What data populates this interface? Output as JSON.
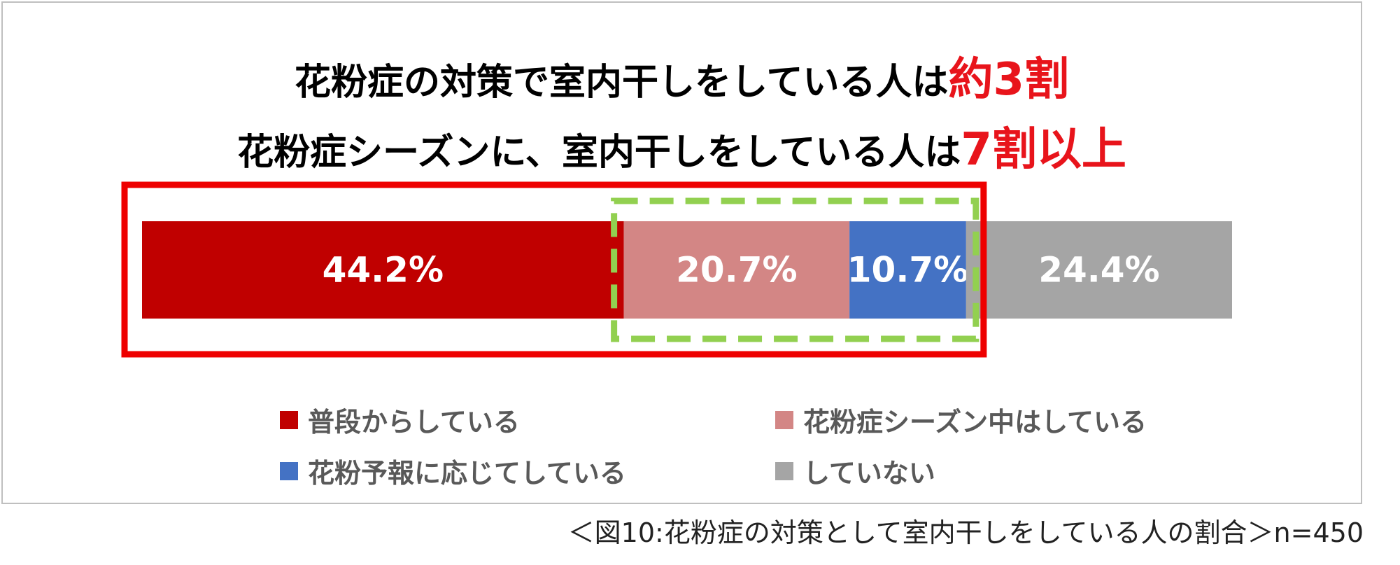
{
  "title": {
    "line1_prefix": "花粉症の対策で室内干しをしている人は",
    "line1_highlight": "約3割",
    "line2_prefix": "花粉症シーズンに、室内干しをしている人は",
    "line2_highlight": "7割以上"
  },
  "colors": {
    "highlight": "#e8141b",
    "red_frame": "#ee0000",
    "green_dash": "#92d050"
  },
  "chart_data": {
    "type": "bar",
    "orientation": "horizontal-stacked",
    "title": "花粉症の対策で室内干しをしている人は約3割",
    "series": [
      {
        "name": "普段からしている",
        "value": 44.2,
        "label": "44.2%",
        "color": "#c00000"
      },
      {
        "name": "花粉症シーズン中はしている",
        "value": 20.7,
        "label": "20.7%",
        "color": "#d38685"
      },
      {
        "name": "花粉予報に応じてしている",
        "value": 10.7,
        "label": "10.7%",
        "color": "#4472c4"
      },
      {
        "name": "していない",
        "value": 24.4,
        "label": "24.4%",
        "color": "#a5a5a5"
      }
    ],
    "total": 100,
    "legend_position": "bottom"
  },
  "legend": [
    {
      "label": "普段からしている",
      "color": "#c00000"
    },
    {
      "label": "花粉症シーズン中はしている",
      "color": "#d38685"
    },
    {
      "label": "花粉予報に応じてしている",
      "color": "#4472c4"
    },
    {
      "label": "していない",
      "color": "#a5a5a5"
    }
  ],
  "caption": "＜図10:花粉症の対策として室内干しをしている人の割合＞n=450"
}
